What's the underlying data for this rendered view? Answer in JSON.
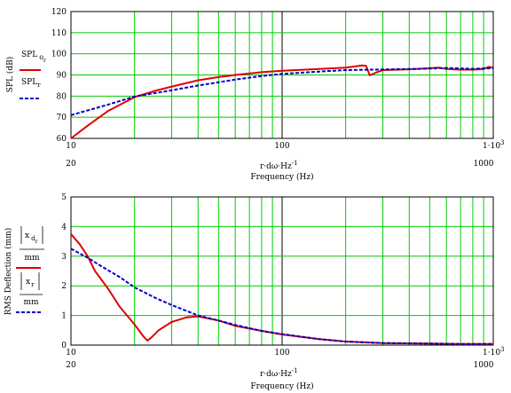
{
  "chart_data": [
    {
      "type": "line",
      "x_scale": "log",
      "xlim": [
        10,
        1000
      ],
      "ylim": [
        60,
        120
      ],
      "x_ticks": [
        "10",
        "100"
      ],
      "x_tick_last": {
        "base": "1·10",
        "exp": "3"
      },
      "y_ticks": [
        "60",
        "70",
        "80",
        "90",
        "100",
        "110",
        "120"
      ],
      "x_sub_labels": [
        "20",
        "1000"
      ],
      "x_expr": {
        "base": "r·dω·Hz",
        "exp": "-1"
      },
      "xlabel": "Frequency (Hz)",
      "ylabel": "SPL (dB)",
      "legend": {
        "s1_base": "SPL",
        "s1_sub": "o",
        "s1_subsub": "r",
        "s2_base": "SPL",
        "s2_sub": "r"
      },
      "grid": true,
      "series": [
        {
          "style": "solid",
          "color": "#e00000",
          "x": [
            10,
            12,
            15,
            20,
            25,
            30,
            40,
            50,
            60,
            80,
            100,
            150,
            200,
            240,
            250,
            260,
            280,
            300,
            400,
            500,
            550,
            600,
            700,
            800,
            900,
            950,
            1000
          ],
          "y": [
            60,
            66,
            73,
            79.5,
            82.5,
            84.5,
            87.5,
            89,
            90,
            91.3,
            92,
            92.8,
            93.5,
            94.5,
            94.3,
            89.8,
            91.2,
            92.3,
            92.7,
            93.2,
            93.5,
            92.8,
            92.5,
            92.5,
            92.8,
            93.8,
            93.5
          ]
        },
        {
          "style": "dashed",
          "color": "#0000cc",
          "x": [
            10,
            15,
            20,
            30,
            40,
            60,
            80,
            100,
            150,
            200,
            300,
            400,
            500,
            600,
            700,
            800,
            900,
            1000
          ],
          "y": [
            71,
            76,
            79.8,
            82.8,
            85,
            87.8,
            89.5,
            90.5,
            91.6,
            92.3,
            92.6,
            92.8,
            93,
            93.3,
            93.1,
            92.9,
            93.1,
            93.2
          ]
        }
      ]
    },
    {
      "type": "line",
      "x_scale": "log",
      "xlim": [
        10,
        1000
      ],
      "ylim": [
        0,
        5
      ],
      "x_ticks": [
        "10",
        "100"
      ],
      "x_tick_last": {
        "base": "1·10",
        "exp": "3"
      },
      "y_ticks": [
        "0",
        "1",
        "2",
        "3",
        "4",
        "5"
      ],
      "x_sub_labels": [
        "20",
        "1000"
      ],
      "x_expr": {
        "base": "r·dω·Hz",
        "exp": "-1"
      },
      "xlabel": "Frequency (Hz)",
      "ylabel": "RMS Deflection (mm)",
      "legend": {
        "s1_num": "x",
        "s1_sub": "d",
        "s1_subsub": "r",
        "s2_num": "x",
        "s2_sub": "r",
        "den": "mm"
      },
      "grid": true,
      "series": [
        {
          "style": "solid",
          "color": "#e00000",
          "x": [
            10,
            11,
            12,
            13,
            15,
            17,
            20,
            22,
            23,
            24,
            26,
            30,
            35,
            40,
            50,
            60,
            80,
            100,
            150,
            200,
            300,
            500,
            700,
            1000
          ],
          "y": [
            3.75,
            3.4,
            3.0,
            2.5,
            1.9,
            1.3,
            0.7,
            0.3,
            0.15,
            0.25,
            0.5,
            0.78,
            0.93,
            0.97,
            0.83,
            0.65,
            0.48,
            0.36,
            0.2,
            0.12,
            0.07,
            0.05,
            0.04,
            0.04
          ]
        },
        {
          "style": "dashed",
          "color": "#0000cc",
          "x": [
            10,
            12,
            14,
            17,
            20,
            25,
            30,
            40,
            50,
            60,
            80,
            100,
            150,
            200,
            300,
            500,
            700,
            1000
          ],
          "y": [
            3.25,
            2.95,
            2.65,
            2.3,
            1.95,
            1.6,
            1.35,
            1.0,
            0.83,
            0.68,
            0.48,
            0.37,
            0.2,
            0.12,
            0.07,
            0.05,
            0.04,
            0.04
          ]
        }
      ]
    }
  ]
}
